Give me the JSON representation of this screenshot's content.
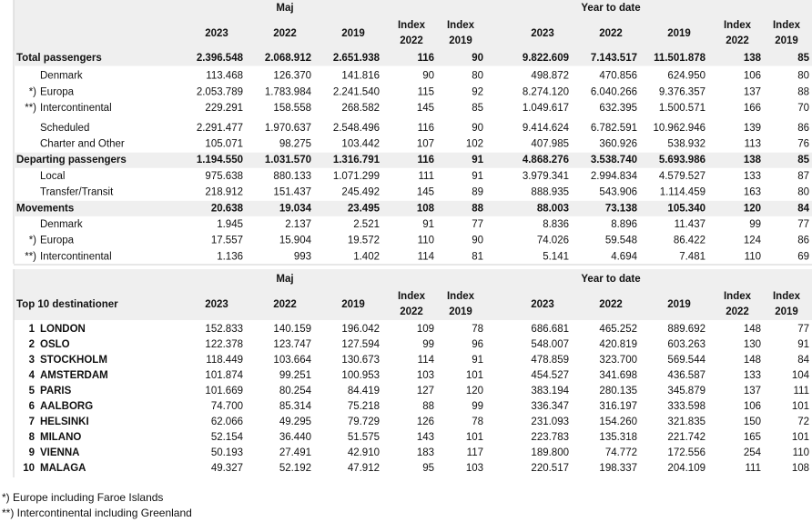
{
  "table1": {
    "group_headers": [
      "Maj",
      "Year to date"
    ],
    "columns": [
      [
        "2023"
      ],
      [
        "2022"
      ],
      [
        "2019"
      ],
      [
        "Index",
        "2022"
      ],
      [
        "Index",
        "2019"
      ],
      [
        "2023"
      ],
      [
        "2022"
      ],
      [
        "2019"
      ],
      [
        "Index",
        "2022"
      ],
      [
        "Index",
        "2019"
      ]
    ],
    "rows": [
      {
        "label": "Total passengers",
        "style": "total",
        "cells": [
          "2.396.548",
          "2.068.912",
          "2.651.938",
          116,
          90,
          "9.822.609",
          "7.143.517",
          "11.501.878",
          138,
          85
        ]
      },
      {
        "label": "Denmark",
        "style": "sub",
        "cells": [
          "113.468",
          "126.370",
          "141.816",
          90,
          80,
          "498.872",
          "470.856",
          "624.950",
          106,
          80
        ]
      },
      {
        "marker": "*)",
        "label": "Europa",
        "style": "sub",
        "cells": [
          "2.053.789",
          "1.783.984",
          "2.241.540",
          115,
          92,
          "8.274.120",
          "6.040.266",
          "9.376.357",
          137,
          88
        ]
      },
      {
        "marker": "**)",
        "label": "Intercontinental",
        "style": "sub",
        "cells": [
          "229.291",
          "158.558",
          "268.582",
          145,
          85,
          "1.049.617",
          "632.395",
          "1.500.571",
          166,
          70
        ]
      },
      {
        "label": "Scheduled",
        "style": "sub",
        "cells": [
          "2.291.477",
          "1.970.637",
          "2.548.496",
          116,
          90,
          "9.414.624",
          "6.782.591",
          "10.962.946",
          139,
          86
        ]
      },
      {
        "label": "Charter and Other",
        "style": "sub",
        "cells": [
          "105.071",
          "98.275",
          "103.442",
          107,
          102,
          "407.985",
          "360.926",
          "538.932",
          113,
          76
        ]
      },
      {
        "label": "Departing passengers",
        "style": "total",
        "cells": [
          "1.194.550",
          "1.031.570",
          "1.316.791",
          116,
          91,
          "4.868.276",
          "3.538.740",
          "5.693.986",
          138,
          85
        ]
      },
      {
        "label": "Local",
        "style": "sub",
        "cells": [
          "975.638",
          "880.133",
          "1.071.299",
          111,
          91,
          "3.979.341",
          "2.994.834",
          "4.579.527",
          133,
          87
        ]
      },
      {
        "label": "Transfer/Transit",
        "style": "sub",
        "cells": [
          "218.912",
          "151.437",
          "245.492",
          145,
          89,
          "888.935",
          "543.906",
          "1.114.459",
          163,
          80
        ]
      },
      {
        "label": "Movements",
        "style": "total",
        "cells": [
          "20.638",
          "19.034",
          "23.495",
          108,
          88,
          "88.003",
          "73.138",
          "105.340",
          120,
          84
        ]
      },
      {
        "label": "Denmark",
        "style": "sub",
        "cells": [
          "1.945",
          "2.137",
          "2.521",
          91,
          77,
          "8.836",
          "8.896",
          "11.437",
          99,
          77
        ]
      },
      {
        "marker": "*)",
        "label": "Europa",
        "style": "sub",
        "cells": [
          "17.557",
          "15.904",
          "19.572",
          110,
          90,
          "74.026",
          "59.548",
          "86.422",
          124,
          86
        ]
      },
      {
        "marker": "**)",
        "label": "Intercontinental",
        "style": "sub",
        "cells": [
          "1.136",
          993,
          "1.402",
          114,
          81,
          "5.141",
          "4.694",
          "7.481",
          110,
          69
        ]
      }
    ]
  },
  "table2": {
    "title": "Top 10 destinationer",
    "group_headers": [
      "Maj",
      "Year to date"
    ],
    "columns": [
      [
        "2023"
      ],
      [
        "2022"
      ],
      [
        "2019"
      ],
      [
        "Index",
        "2022"
      ],
      [
        "Index",
        "2019"
      ],
      [
        "2023"
      ],
      [
        "2022"
      ],
      [
        "2019"
      ],
      [
        "Index",
        "2022"
      ],
      [
        "Index",
        "2019"
      ]
    ],
    "rows": [
      {
        "rank": 1,
        "name": "LONDON",
        "cells": [
          "152.833",
          "140.159",
          "196.042",
          109,
          78,
          "686.681",
          "465.252",
          "889.692",
          148,
          77
        ]
      },
      {
        "rank": 2,
        "name": "OSLO",
        "cells": [
          "122.378",
          "123.747",
          "127.594",
          99,
          96,
          "548.007",
          "420.819",
          "603.263",
          130,
          91
        ]
      },
      {
        "rank": 3,
        "name": "STOCKHOLM",
        "cells": [
          "118.449",
          "103.664",
          "130.673",
          114,
          91,
          "478.859",
          "323.700",
          "569.544",
          148,
          84
        ]
      },
      {
        "rank": 4,
        "name": "AMSTERDAM",
        "cells": [
          "101.874",
          "99.251",
          "100.953",
          103,
          101,
          "454.527",
          "341.698",
          "436.587",
          133,
          104
        ]
      },
      {
        "rank": 5,
        "name": "PARIS",
        "cells": [
          "101.669",
          "80.254",
          "84.419",
          127,
          120,
          "383.194",
          "280.135",
          "345.879",
          137,
          111
        ]
      },
      {
        "rank": 6,
        "name": "AALBORG",
        "cells": [
          "74.700",
          "85.314",
          "75.218",
          88,
          99,
          "336.347",
          "316.197",
          "333.598",
          106,
          101
        ]
      },
      {
        "rank": 7,
        "name": "HELSINKI",
        "cells": [
          "62.066",
          "49.295",
          "79.729",
          126,
          78,
          "231.093",
          "154.260",
          "321.835",
          150,
          72
        ]
      },
      {
        "rank": 8,
        "name": "MILANO",
        "cells": [
          "52.154",
          "36.440",
          "51.575",
          143,
          101,
          "223.783",
          "135.318",
          "221.742",
          165,
          101
        ]
      },
      {
        "rank": 9,
        "name": "VIENNA",
        "cells": [
          "50.193",
          "27.491",
          "42.910",
          183,
          117,
          "189.800",
          "74.772",
          "172.556",
          254,
          110
        ]
      },
      {
        "rank": 10,
        "name": "MALAGA",
        "cells": [
          "49.327",
          "52.192",
          "47.912",
          95,
          103,
          "220.517",
          "198.337",
          "204.109",
          111,
          108
        ]
      }
    ]
  },
  "footnotes": [
    "*) Europe including Faroe Islands",
    "**) Intercontinental including Greenland"
  ]
}
